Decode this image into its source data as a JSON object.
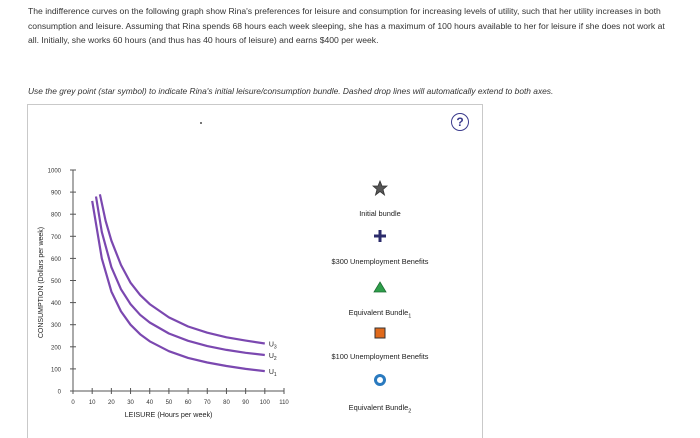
{
  "question": {
    "intro": "The indifference curves on the following graph show Rina's preferences for leisure and consumption for increasing levels of utility, such that her utility increases in both consumption and leisure. Assuming that Rina spends 68 hours each week sleeping, she has a maximum of 100 hours available to her for leisure if she does not work at all. Initially, she works 60 hours (and thus has 40 hours of leisure) and earns $400 per week.",
    "instruction": "Use the grey point (star symbol) to indicate Rina's initial leisure/consumption bundle. Dashed drop lines will automatically extend to both axes."
  },
  "help_label": "?",
  "tools": [
    {
      "label": "Initial bundle",
      "icon": "star-icon",
      "color": "#555555"
    },
    {
      "label": "$300 Unemployment Benefits",
      "icon": "plus-icon",
      "color": "#2b2b6b"
    },
    {
      "label": "Equivalent Bundle1",
      "label_main": "Equivalent Bundle",
      "label_sub": "1",
      "icon": "triangle-icon",
      "color": "#2e9e4a"
    },
    {
      "label": "$100 Unemployment Benefits",
      "icon": "square-icon",
      "color": "#e06a1b"
    },
    {
      "label": "Equivalent Bundle2",
      "label_main": "Equivalent Bundle",
      "label_sub": "2",
      "icon": "circle-icon",
      "color": "#2a7abf"
    }
  ],
  "chart_data": {
    "type": "line",
    "xlabel": "LEISURE (Hours per week)",
    "ylabel": "CONSUMPTION (Dollars per week)",
    "xlim": [
      0,
      110
    ],
    "ylim": [
      0,
      1000
    ],
    "xticks": [
      0,
      10,
      20,
      30,
      40,
      50,
      60,
      70,
      80,
      90,
      100,
      110
    ],
    "yticks": [
      0,
      100,
      200,
      300,
      400,
      500,
      600,
      700,
      800,
      900,
      1000
    ],
    "curve_color": "#7b48b0",
    "series": [
      {
        "name": "U1",
        "label_main": "U",
        "label_sub": "1",
        "x": [
          10,
          15,
          20,
          25,
          30,
          35,
          40,
          50,
          60,
          70,
          80,
          90,
          100
        ],
        "y": [
          860,
          600,
          450,
          360,
          300,
          257,
          225,
          180,
          150,
          129,
          113,
          100,
          90
        ]
      },
      {
        "name": "U2",
        "label_main": "U",
        "label_sub": "2",
        "x": [
          12,
          15,
          20,
          25,
          30,
          35,
          40,
          50,
          60,
          70,
          80,
          90,
          100
        ],
        "y": [
          880,
          720,
          560,
          460,
          393,
          345,
          310,
          260,
          227,
          203,
          186,
          173,
          163
        ]
      },
      {
        "name": "U3",
        "label_main": "U",
        "label_sub": "3",
        "x": [
          14,
          17,
          20,
          25,
          30,
          35,
          40,
          50,
          60,
          70,
          80,
          90,
          100
        ],
        "y": [
          890,
          770,
          680,
          570,
          490,
          435,
          393,
          333,
          292,
          264,
          243,
          228,
          215
        ]
      }
    ]
  }
}
